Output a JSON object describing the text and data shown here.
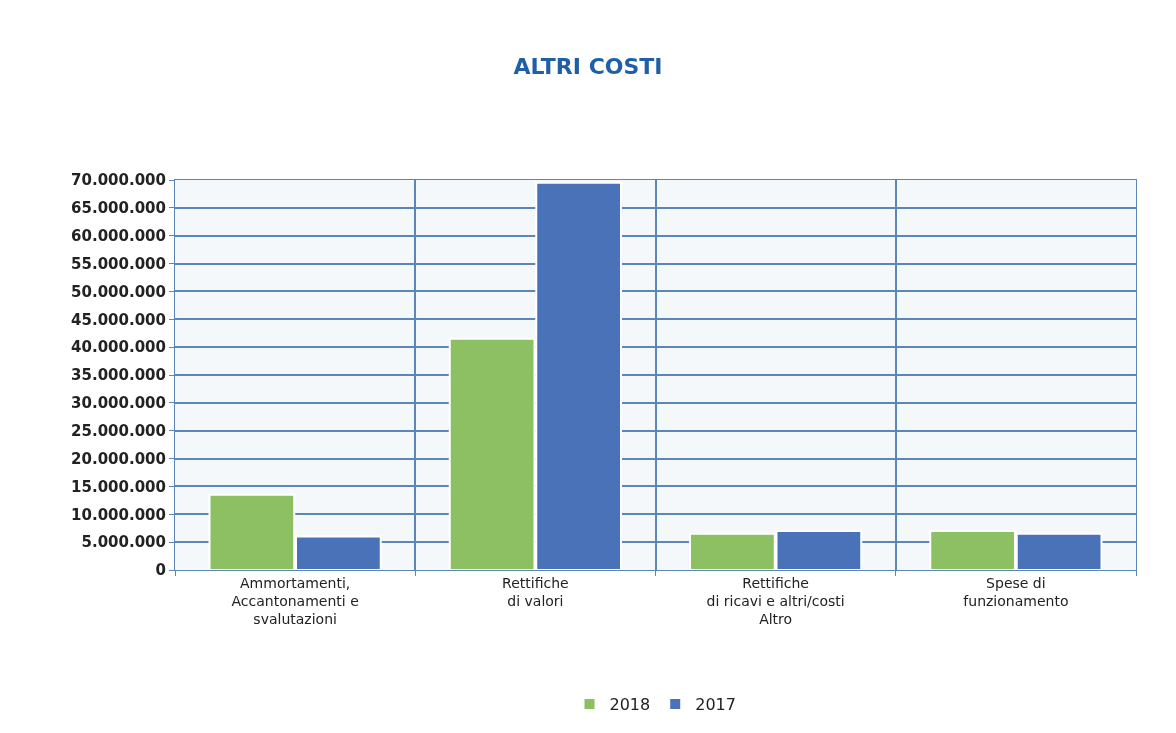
{
  "chart_data": {
    "type": "bar",
    "title": "ALTRI COSTI",
    "categories": [
      "Ammortamenti,\nAccantonamenti e\nsvalutazioni",
      "Rettifiche\ndi valori",
      "Rettifiche\ndi ricavi e altri/costi\nAltro",
      "Spese di\nfunzionamento"
    ],
    "series": [
      {
        "name": "2018",
        "color": "#8cc063",
        "values": [
          13500000,
          41500000,
          6500000,
          7000000
        ]
      },
      {
        "name": "2017",
        "color": "#4a72b8",
        "values": [
          6000000,
          69500000,
          7000000,
          6500000
        ]
      }
    ],
    "ylim": [
      0,
      70000000
    ],
    "yticks": [
      0,
      {
        "value": 5000000,
        "label": "5.000.000"
      },
      {
        "value": 10000000,
        "label": "10.000.000"
      },
      {
        "value": 15000000,
        "label": "15.000.000"
      },
      {
        "value": 20000000,
        "label": "20.000.000"
      },
      {
        "value": 25000000,
        "label": "25.000.000"
      },
      {
        "value": 30000000,
        "label": "30.000.000"
      },
      {
        "value": 35000000,
        "label": "35.000.000"
      },
      {
        "value": 40000000,
        "label": "40.000.000"
      },
      {
        "value": 45000000,
        "label": "45.000.000"
      },
      {
        "value": 50000000,
        "label": "50.000.000"
      },
      {
        "value": 55000000,
        "label": "55.000.000"
      },
      {
        "value": 60000000,
        "label": "60.000.000"
      },
      {
        "value": 65000000,
        "label": "65.000.000"
      },
      {
        "value": 70000000,
        "label": "70.000.000"
      }
    ],
    "grid": true,
    "legend": "bottom"
  }
}
